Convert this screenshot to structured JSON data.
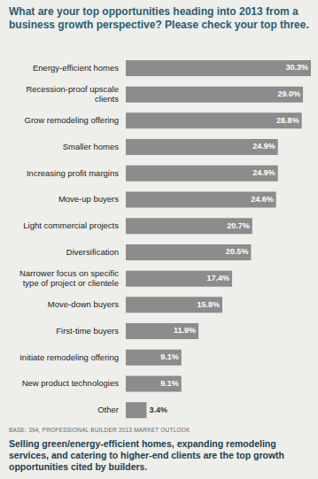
{
  "chart_data": {
    "type": "bar",
    "orientation": "horizontal",
    "title": "What are your top opportunities heading into 2013 from a business growth perspective? Please check your top three.",
    "categories": [
      "Energy-efficient homes",
      "Recession-proof upscale clients",
      "Grow remodeling offering",
      "Smaller homes",
      "Increasing profit margins",
      "Move-up buyers",
      "Light commercial projects",
      "Diversification",
      "Narrower focus on specific type of project or clientele",
      "Move-down buyers",
      "First-time buyers",
      "Initiate remodeling offering",
      "New product technologies",
      "Other"
    ],
    "values": [
      30.3,
      29.0,
      28.8,
      24.9,
      24.9,
      24.6,
      20.7,
      20.5,
      17.4,
      15.8,
      11.9,
      9.1,
      9.1,
      3.4
    ],
    "value_labels": [
      "30.3%",
      "29.0%",
      "28.8%",
      "24.9%",
      "24.9%",
      "24.6%",
      "20.7%",
      "20.5%",
      "17.4%",
      "15.8%",
      "11.9%",
      "9.1%",
      "9.1%",
      "3.4%"
    ],
    "data_labels": true,
    "tick_labels": "y",
    "grid": false,
    "color": "#8c8c8c",
    "annotations": [
      "BASE: 394, PROFESSIONAL BUILDER 2013 MARKET OUTLOOK",
      "Selling green/energy-efficient homes, expanding remodeling services, and catering to higher-end clients are the top growth opportunities cited by builders."
    ]
  }
}
